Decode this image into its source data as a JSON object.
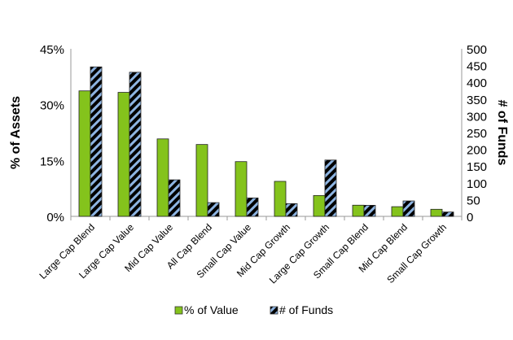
{
  "chart_data": {
    "type": "bar",
    "categories": [
      "Large Cap Blend",
      "Large Cap Value",
      "Mid Cap Value",
      "All Cap Blend",
      "Small Cap Value",
      "Mid Cap Growth",
      "Large Cap Growth",
      "Small Cap Blend",
      "Mid Cap Blend",
      "Small Cap Growth"
    ],
    "series": [
      {
        "name": "% of Value",
        "axis": "left",
        "color": "#84c31c",
        "values": [
          33.7,
          33.3,
          20.8,
          19.3,
          14.7,
          9.4,
          5.6,
          3.0,
          2.6,
          1.9
        ]
      },
      {
        "name": "# of Funds",
        "axis": "right",
        "color": "#8db4e2",
        "pattern": "diagonal-stripes",
        "values": [
          446,
          430,
          109,
          41,
          55,
          38,
          168,
          33,
          46,
          13
        ]
      }
    ],
    "ylabel": "% of Assets",
    "y2label": "# of Funds",
    "ylim": [
      0,
      45
    ],
    "y2lim": [
      0,
      500
    ],
    "yticks": [
      "0%",
      "15%",
      "30%",
      "45%"
    ],
    "y2ticks": [
      "0",
      "50",
      "100",
      "150",
      "200",
      "250",
      "300",
      "350",
      "400",
      "450",
      "500"
    ],
    "grid": false,
    "legend": "bottom"
  }
}
